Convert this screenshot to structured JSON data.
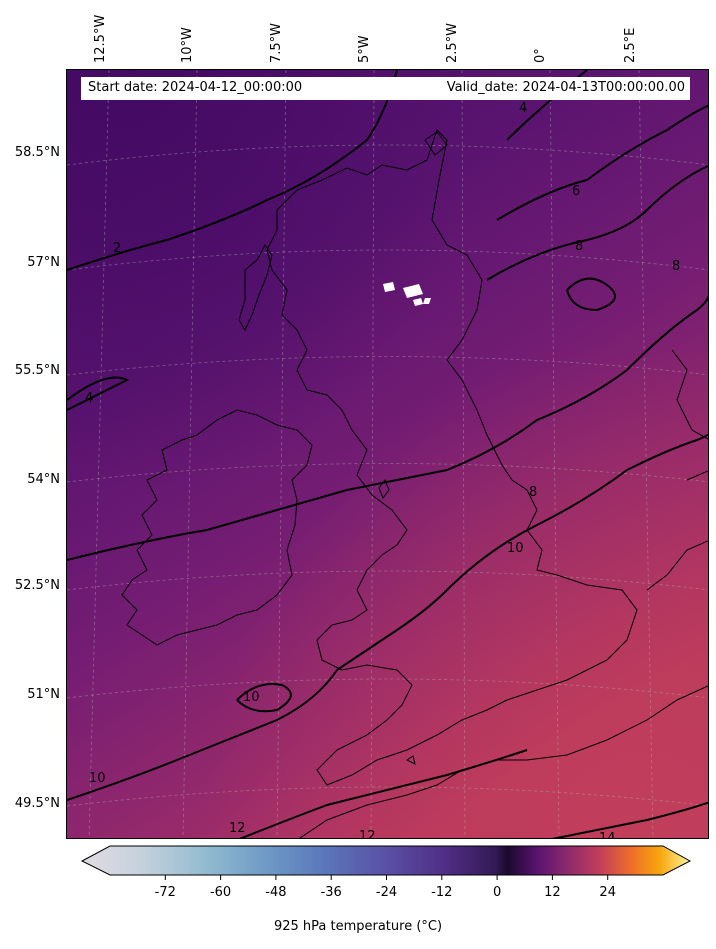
{
  "lon_labels": [
    "12.5°W",
    "10°W",
    "7.5°W",
    "5°W",
    "2.5°W",
    "0°",
    "2.5°E"
  ],
  "lat_labels": [
    "58.5°N",
    "57°N",
    "55.5°N",
    "54°N",
    "52.5°N",
    "51°N",
    "49.5°N"
  ],
  "info": {
    "start_date": "Start date: 2024-04-12_00:00:00",
    "valid_date": "Valid_date: 2024-04-13T00:00:00.00"
  },
  "contour_labels": [
    "2",
    "4",
    "4",
    "6",
    "8",
    "8",
    "8",
    "10",
    "10",
    "10",
    "12",
    "12",
    "14"
  ],
  "colorbar": {
    "ticks": [
      "-72",
      "-60",
      "-48",
      "-36",
      "-24",
      "-12",
      "0",
      "12",
      "24"
    ],
    "label": "925 hPa temperature ($^\\circ$C)",
    "label_display": "925 hPa temperature (°C)",
    "colormap": "inferno-based with light-blue negative range",
    "range": [
      -84,
      36
    ],
    "extend": "both"
  },
  "colors": {
    "cold_purple": "#4f0f6a",
    "mid_purple": "#6a1a72",
    "warm_magenta": "#b7375f",
    "snow_white": "#ffffff"
  }
}
